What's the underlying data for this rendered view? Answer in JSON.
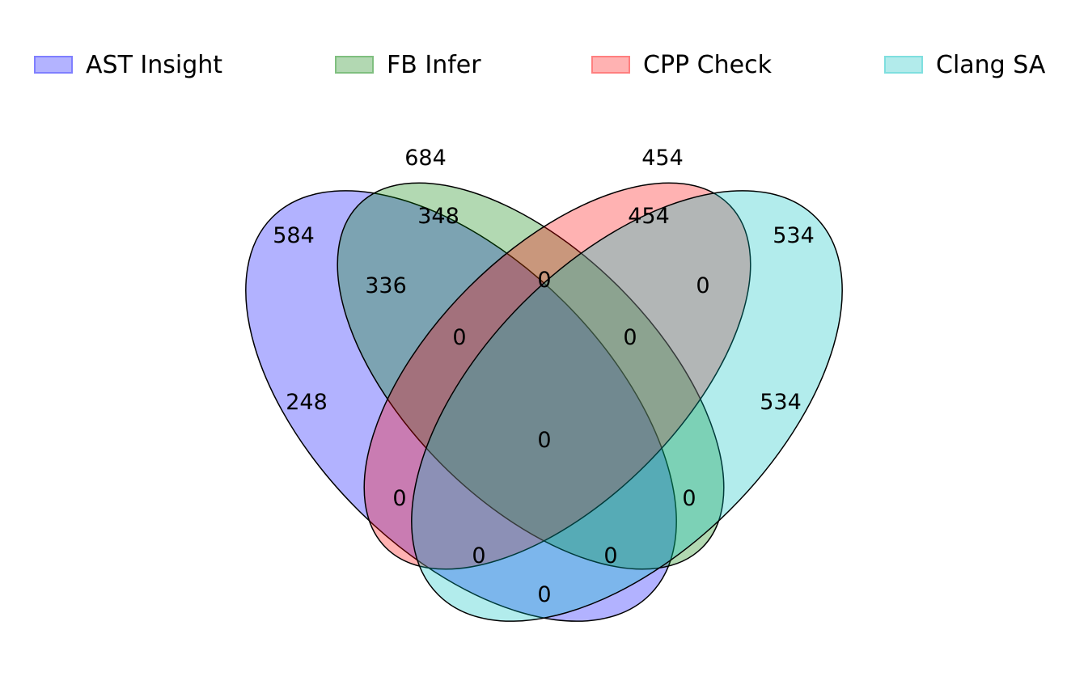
{
  "legend": {
    "items": [
      {
        "label": "AST Insight",
        "fill": "#b3b3ff",
        "border": "#7f7fff"
      },
      {
        "label": "FB Infer",
        "fill": "#b2d8b2",
        "border": "#7fbf7f"
      },
      {
        "label": "CPP Check",
        "fill": "#ffb2b2",
        "border": "#ff7f7f"
      },
      {
        "label": "Clang SA",
        "fill": "#b2ebeb",
        "border": "#7fdfdf"
      }
    ]
  },
  "venn": {
    "sets": [
      {
        "name": "AST Insight",
        "color": "#0000ff",
        "total": "584"
      },
      {
        "name": "FB Infer",
        "color": "#008000",
        "total": "684"
      },
      {
        "name": "CPP Check",
        "color": "#ff0000",
        "total": "454"
      },
      {
        "name": "Clang SA",
        "color": "#00bfbf",
        "total": "534"
      }
    ],
    "regions": {
      "ast_only": "248",
      "fb_only": "348",
      "cpp_only": "454",
      "clang_only": "534",
      "ast_fb": "336",
      "ast_cpp": "0",
      "ast_clang": "0",
      "fb_cpp": "0",
      "fb_clang": "0",
      "cpp_clang": "0",
      "ast_fb_cpp": "0",
      "ast_fb_clang": "0",
      "ast_cpp_clang": "0",
      "fb_cpp_clang": "0",
      "ast_fb_cpp_clang": "0"
    }
  }
}
